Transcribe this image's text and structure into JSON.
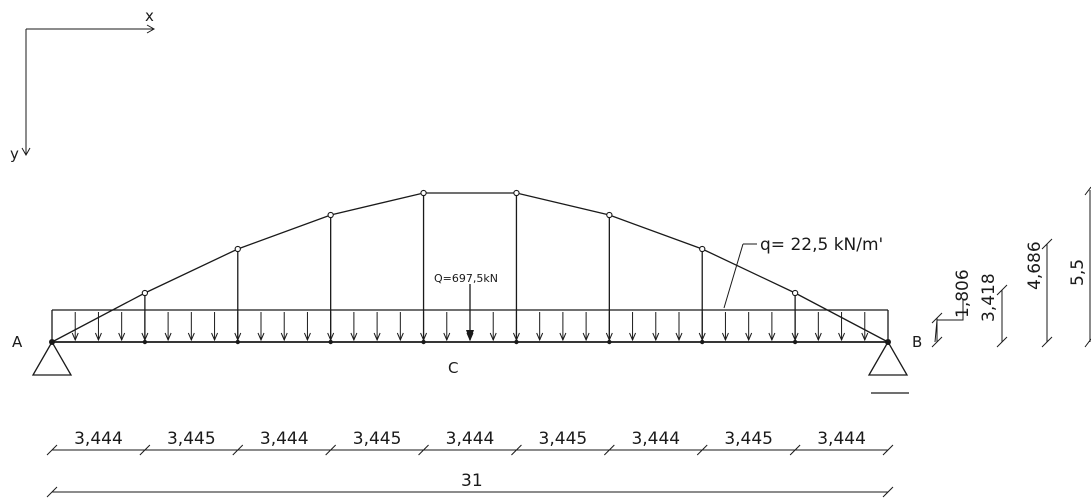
{
  "axes": {
    "x_label": "x",
    "y_label": "y"
  },
  "labels": {
    "support_a": "A",
    "support_b": "B",
    "point_c": "C",
    "resultant": "Q=697,5kN",
    "distributed_load": "q=  22,5  kN/m'"
  },
  "spans": [
    "3,444",
    "3,445",
    "3,444",
    "3,445",
    "3,444",
    "3,445",
    "3,444",
    "3,445",
    "3,444"
  ],
  "total_length": "31",
  "heights": [
    "1,806",
    "3,418",
    "4,686",
    "5,5"
  ]
}
